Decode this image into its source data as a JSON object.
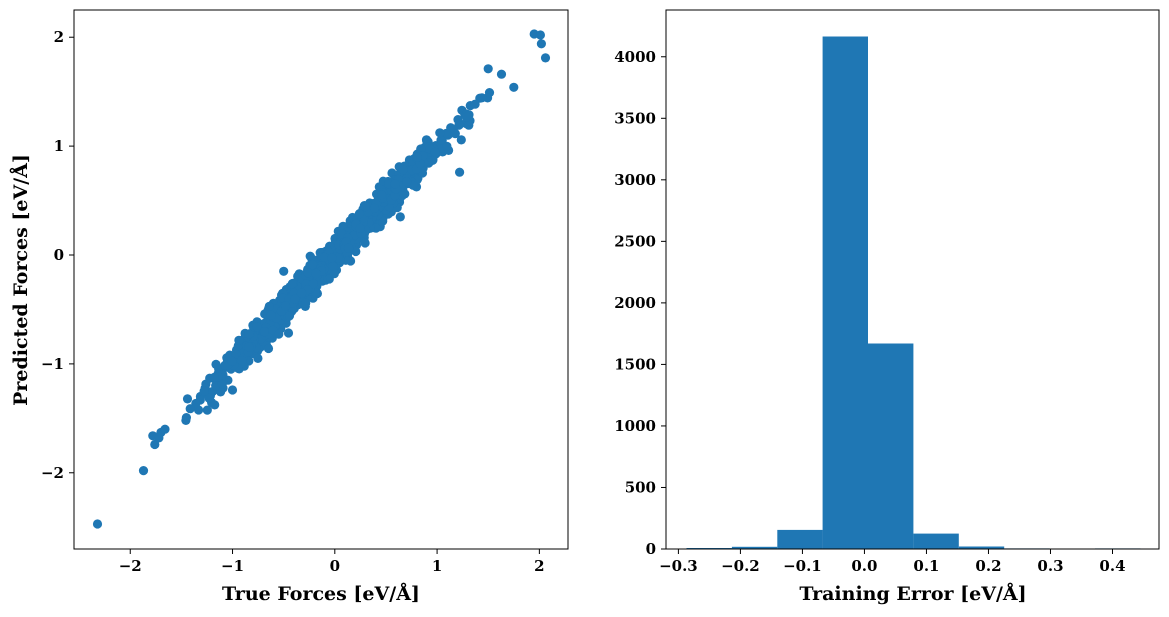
{
  "chart_data": [
    {
      "type": "scatter",
      "xlabel": "True Forces [eV/Å]",
      "ylabel": "Predicted Forces [eV/Å]",
      "xlim": [
        -2.55,
        2.28
      ],
      "ylim": [
        -2.7,
        2.25
      ],
      "xticks": [
        -2,
        -1,
        0,
        1,
        2
      ],
      "yticks": [
        -2,
        -1,
        0,
        1,
        2
      ],
      "color": "#1f77b4",
      "outliers": [
        {
          "x": -2.32,
          "y": -2.47
        },
        {
          "x": -1.87,
          "y": -1.98
        },
        {
          "x": -1.78,
          "y": -1.66
        },
        {
          "x": -1.76,
          "y": -1.74
        },
        {
          "x": -1.72,
          "y": -1.68
        },
        {
          "x": -1.7,
          "y": -1.63
        },
        {
          "x": -1.66,
          "y": -1.6
        },
        {
          "x": 1.95,
          "y": 2.03
        },
        {
          "x": 2.01,
          "y": 2.02
        },
        {
          "x": 2.02,
          "y": 1.94
        },
        {
          "x": 2.06,
          "y": 1.81
        },
        {
          "x": 1.75,
          "y": 1.54
        },
        {
          "x": 1.63,
          "y": 1.66
        },
        {
          "x": 1.5,
          "y": 1.71
        },
        {
          "x": 1.22,
          "y": 0.76
        },
        {
          "x": -1.0,
          "y": -1.24
        },
        {
          "x": -0.5,
          "y": -0.15
        },
        {
          "x": 0.64,
          "y": 0.35
        }
      ],
      "bulk": {
        "n_points": 1500,
        "x_range": [
          -1.5,
          1.6
        ],
        "slope": 1.0,
        "spread": 0.07
      }
    },
    {
      "type": "bar",
      "xlabel": "Training Error [eV/Å]",
      "ylabel": "",
      "xlim": [
        -0.32,
        0.475
      ],
      "ylim": [
        0,
        4380
      ],
      "xticks": [
        -0.3,
        -0.2,
        -0.1,
        0.0,
        0.1,
        0.2,
        0.3,
        0.4
      ],
      "xtick_labels": [
        "−0.3",
        "−0.2",
        "−0.1",
        "0.0",
        "0.1",
        "0.2",
        "0.3",
        "0.4"
      ],
      "yticks": [
        0,
        500,
        1000,
        1500,
        2000,
        2500,
        3000,
        3500,
        4000
      ],
      "color": "#1f77b4",
      "bins": [
        -0.287,
        -0.2138,
        -0.1406,
        -0.0674,
        0.0058,
        0.079,
        0.1522,
        0.2254,
        0.2986,
        0.3718,
        0.445
      ],
      "counts": [
        8,
        18,
        155,
        4165,
        1670,
        125,
        20,
        5,
        2,
        5
      ]
    }
  ]
}
